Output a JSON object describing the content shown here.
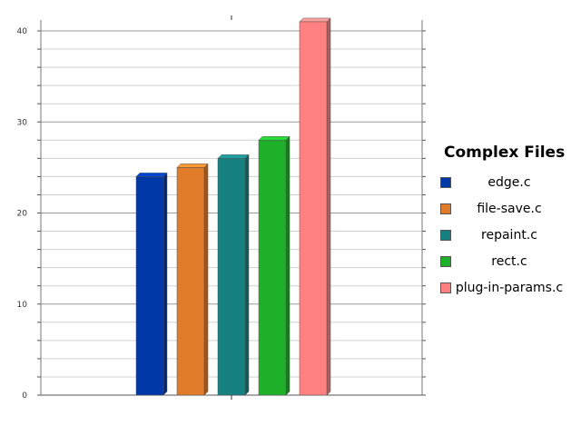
{
  "chart_data": {
    "type": "bar",
    "title": "",
    "xlabel": "",
    "ylabel": "",
    "ylim": [
      0,
      40
    ],
    "yticks": [
      0,
      10,
      20,
      30,
      40
    ],
    "grid": true,
    "legend_title": "Complex Files",
    "legend_position": "right",
    "series": [
      {
        "name": "edge.c",
        "value": 24,
        "color": "#0038a8"
      },
      {
        "name": "file-save.c",
        "value": 25,
        "color": "#e07b2a"
      },
      {
        "name": "repaint.c",
        "value": 26,
        "color": "#178080"
      },
      {
        "name": "rect.c",
        "value": 28,
        "color": "#1fb02a"
      },
      {
        "name": "plug-in-params.c",
        "value": 41,
        "color": "#ff8080"
      }
    ]
  }
}
